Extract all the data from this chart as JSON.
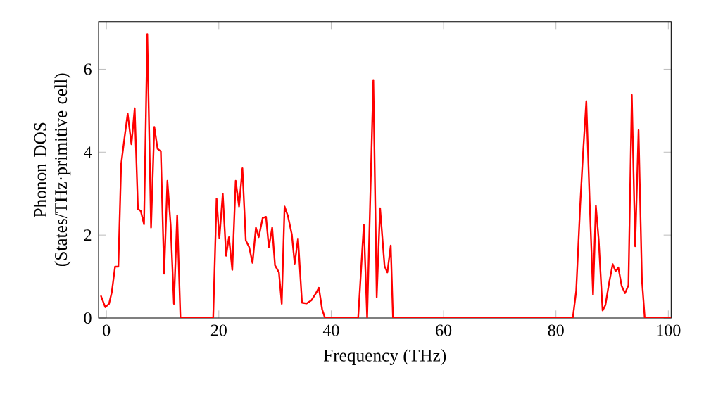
{
  "chart_data": {
    "type": "line",
    "xlabel": "Frequency (THz)",
    "ylabel": "Phonon DOS (States/THz·primitive cell)",
    "xlim": [
      -1.4,
      100.5
    ],
    "ylim": [
      0,
      7.15
    ],
    "xticks": [
      0,
      20,
      40,
      60,
      80,
      100
    ],
    "yticks": [
      0,
      2,
      4,
      6
    ],
    "marker": "none",
    "line_style": "solid",
    "color": "#ff0000",
    "x": [
      -1.0,
      -0.21,
      0.46,
      0.95,
      1.54,
      2.12,
      2.62,
      3.2,
      3.78,
      4.45,
      5.03,
      5.61,
      6.11,
      6.69,
      7.27,
      7.94,
      8.52,
      9.1,
      9.68,
      10.27,
      10.85,
      11.43,
      12.01,
      12.59,
      13.17,
      19.0,
      19.6,
      20.1,
      20.7,
      21.3,
      21.8,
      22.4,
      23.0,
      23.6,
      24.2,
      24.8,
      25.4,
      26.0,
      26.6,
      27.1,
      27.8,
      28.4,
      28.9,
      29.5,
      30.0,
      30.7,
      31.2,
      31.7,
      32.3,
      33.0,
      33.5,
      34.1,
      34.8,
      35.6,
      36.5,
      37.3,
      37.8,
      38.4,
      38.9,
      44.8,
      45.8,
      46.4,
      47.5,
      48.1,
      48.7,
      49.5,
      50.0,
      50.6,
      51.0,
      83.0,
      83.6,
      84.3,
      84.8,
      85.4,
      86.0,
      86.6,
      87.1,
      87.6,
      88.3,
      88.8,
      89.5,
      90.1,
      90.6,
      91.1,
      91.7,
      92.3,
      92.9,
      93.5,
      94.1,
      94.7,
      95.3,
      95.8,
      100.5
    ],
    "values": [
      0.54,
      0.26,
      0.34,
      0.62,
      1.24,
      1.24,
      3.71,
      4.33,
      4.93,
      4.19,
      5.06,
      2.63,
      2.58,
      2.26,
      6.85,
      2.18,
      4.61,
      4.08,
      4.02,
      1.07,
      3.31,
      2.24,
      0.34,
      2.48,
      0,
      0,
      2.88,
      1.92,
      3.0,
      1.5,
      1.95,
      1.16,
      3.31,
      2.69,
      3.61,
      1.87,
      1.71,
      1.33,
      2.18,
      1.95,
      2.41,
      2.44,
      1.71,
      2.18,
      1.27,
      1.1,
      0.34,
      2.69,
      2.46,
      2.01,
      1.31,
      1.92,
      0.37,
      0.35,
      0.43,
      0.6,
      0.73,
      0.2,
      0,
      0,
      2.25,
      0,
      5.74,
      0.5,
      2.65,
      1.25,
      1.1,
      1.75,
      0,
      0,
      0.65,
      2.69,
      3.93,
      5.23,
      2.8,
      0.56,
      2.71,
      1.9,
      0.18,
      0.31,
      0.88,
      1.3,
      1.13,
      1.22,
      0.77,
      0.6,
      0.79,
      5.38,
      1.73,
      4.53,
      0.93,
      0,
      0
    ]
  }
}
